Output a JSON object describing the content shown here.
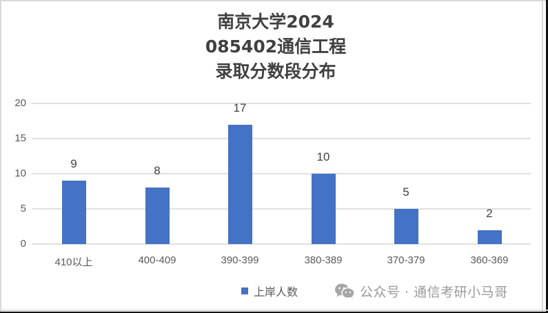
{
  "chart_data": {
    "type": "bar",
    "title": "南京大学2024\n085402通信工程\n录取分数段分布",
    "title_lines": [
      "南京大学2024",
      "085402通信工程",
      "录取分数段分布"
    ],
    "categories": [
      "410以上",
      "400-409",
      "390-399",
      "380-389",
      "370-379",
      "360-369"
    ],
    "series": [
      {
        "name": "上岸人数",
        "values": [
          9,
          8,
          17,
          10,
          5,
          2
        ],
        "color": "#4472C4"
      }
    ],
    "values": [
      9,
      8,
      17,
      10,
      5,
      2
    ],
    "xlabel": "",
    "ylabel": "",
    "ylim": [
      0,
      20
    ],
    "yticks": [
      0,
      5,
      10,
      15,
      20
    ],
    "grid": true,
    "legend_position": "bottom",
    "data_labels": true
  },
  "legend": {
    "label": "上岸人数",
    "color": "#4472C4"
  },
  "watermark": {
    "icon": "wechat-icon",
    "text": "公众号 · 通信考研小马哥"
  }
}
